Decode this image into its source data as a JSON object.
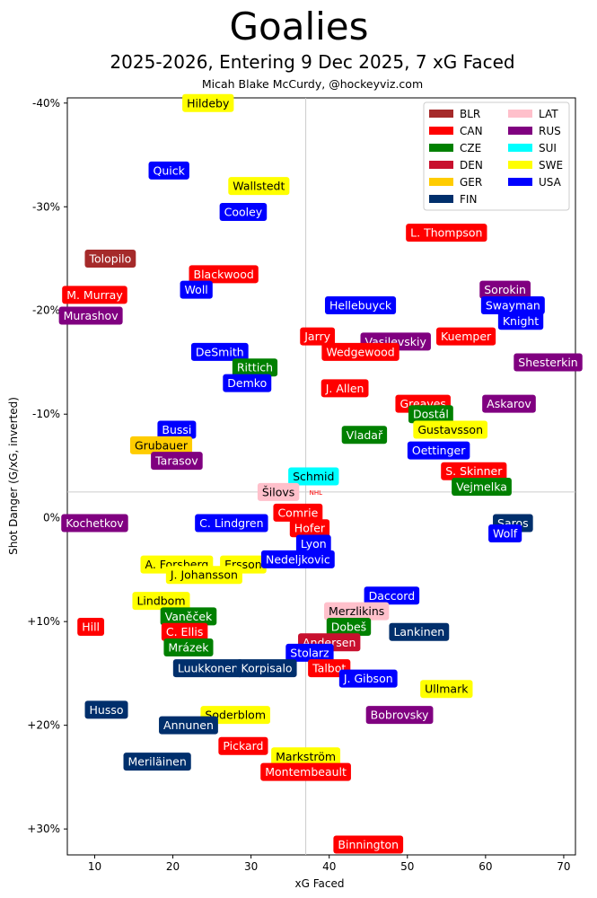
{
  "chart_data": {
    "type": "scatter",
    "title": "Goalies",
    "subtitle": "2025-2026, Entering 9 Dec 2025, 7 xG Faced",
    "credit": "Micah Blake McCurdy, @hockeyviz.com",
    "xlabel": "xG Faced",
    "ylabel": "Shot Danger (G/xG, inverted)",
    "xlim": [
      6.5,
      71.5
    ],
    "ylim": [
      -40.5,
      32.5
    ],
    "xticks": [
      10,
      20,
      30,
      40,
      50,
      60,
      70
    ],
    "xtick_labels": [
      "10",
      "20",
      "30",
      "40",
      "50",
      "60",
      "70"
    ],
    "yticks": [
      -40,
      -30,
      -20,
      -10,
      0,
      10,
      20,
      30
    ],
    "ytick_labels": [
      "-40%",
      "-30%",
      "-20%",
      "-10%",
      "0%",
      "+10%",
      "+20%",
      "+30%"
    ],
    "reference_lines": {
      "x": 37,
      "y": -2.5
    },
    "nhl_marker_label": "NHL",
    "legend": [
      {
        "code": "BLR",
        "color": "#a52a2a"
      },
      {
        "code": "CAN",
        "color": "#ff0000"
      },
      {
        "code": "CZE",
        "color": "#008000"
      },
      {
        "code": "DEN",
        "color": "#c8102e"
      },
      {
        "code": "GER",
        "color": "#ffcc00"
      },
      {
        "code": "FIN",
        "color": "#002f6c"
      },
      {
        "code": "LAT",
        "color": "#ffc0cb"
      },
      {
        "code": "RUS",
        "color": "#800080"
      },
      {
        "code": "SUI",
        "color": "#00ffff"
      },
      {
        "code": "SWE",
        "color": "#ffff00"
      },
      {
        "code": "USA",
        "color": "#0000ff"
      }
    ],
    "colors": {
      "BLR": "#a52a2a",
      "CAN": "#ff0000",
      "CZE": "#008000",
      "DEN": "#c8102e",
      "GER": "#ffcc00",
      "FIN": "#002f6c",
      "LAT": "#ffc0cb",
      "RUS": "#800080",
      "SUI": "#00ffff",
      "SWE": "#ffff00",
      "USA": "#0000ff"
    },
    "points": [
      {
        "name": "Hildeby",
        "country": "SWE",
        "x": 24.5,
        "y": -40.0
      },
      {
        "name": "Quick",
        "country": "USA",
        "x": 19.5,
        "y": -33.5
      },
      {
        "name": "Wallstedt",
        "country": "SWE",
        "x": 31.0,
        "y": -32.0
      },
      {
        "name": "Cooley",
        "country": "USA",
        "x": 29.0,
        "y": -29.5
      },
      {
        "name": "L. Thompson",
        "country": "CAN",
        "x": 55.0,
        "y": -27.5
      },
      {
        "name": "Tolopilo",
        "country": "BLR",
        "x": 12.0,
        "y": -25.0
      },
      {
        "name": "Blackwood",
        "country": "CAN",
        "x": 26.5,
        "y": -23.5
      },
      {
        "name": "M. Murray",
        "country": "CAN",
        "x": 10.0,
        "y": -21.5
      },
      {
        "name": "Woll",
        "country": "USA",
        "x": 23.0,
        "y": -22.0
      },
      {
        "name": "Sorokin",
        "country": "RUS",
        "x": 62.5,
        "y": -22.0
      },
      {
        "name": "Hellebuyck",
        "country": "USA",
        "x": 44.0,
        "y": -20.5
      },
      {
        "name": "Swayman",
        "country": "USA",
        "x": 63.5,
        "y": -20.5
      },
      {
        "name": "Murashov",
        "country": "RUS",
        "x": 9.5,
        "y": -19.5
      },
      {
        "name": "Knight",
        "country": "USA",
        "x": 64.5,
        "y": -19.0
      },
      {
        "name": "Jarry",
        "country": "CAN",
        "x": 38.5,
        "y": -17.5
      },
      {
        "name": "Kuemper",
        "country": "CAN",
        "x": 57.5,
        "y": -17.5
      },
      {
        "name": "Vasilevskiy",
        "country": "RUS",
        "x": 48.5,
        "y": -17.0
      },
      {
        "name": "Wedgewood",
        "country": "CAN",
        "x": 44.0,
        "y": -16.0
      },
      {
        "name": "DeSmith",
        "country": "USA",
        "x": 26.0,
        "y": -16.0
      },
      {
        "name": "Shesterkin",
        "country": "RUS",
        "x": 68.0,
        "y": -15.0
      },
      {
        "name": "Rittich",
        "country": "CZE",
        "x": 30.5,
        "y": -14.5
      },
      {
        "name": "Demko",
        "country": "USA",
        "x": 29.5,
        "y": -13.0
      },
      {
        "name": "J. Allen",
        "country": "CAN",
        "x": 42.0,
        "y": -12.5
      },
      {
        "name": "Greaves",
        "country": "CAN",
        "x": 52.0,
        "y": -11.0
      },
      {
        "name": "Askarov",
        "country": "RUS",
        "x": 63.0,
        "y": -11.0
      },
      {
        "name": "Dostál",
        "country": "CZE",
        "x": 53.0,
        "y": -10.0
      },
      {
        "name": "Bussi",
        "country": "USA",
        "x": 20.5,
        "y": -8.5
      },
      {
        "name": "Gustavsson",
        "country": "SWE",
        "x": 55.5,
        "y": -8.5
      },
      {
        "name": "Vladař",
        "country": "CZE",
        "x": 44.5,
        "y": -8.0
      },
      {
        "name": "Grubauer",
        "country": "GER",
        "x": 18.5,
        "y": -7.0
      },
      {
        "name": "Oettinger",
        "country": "USA",
        "x": 54.0,
        "y": -6.5
      },
      {
        "name": "Tarasov",
        "country": "RUS",
        "x": 20.5,
        "y": -5.5
      },
      {
        "name": "S. Skinner",
        "country": "CAN",
        "x": 58.5,
        "y": -4.5
      },
      {
        "name": "Schmid",
        "country": "SUI",
        "x": 38.0,
        "y": -4.0
      },
      {
        "name": "Vejmelka",
        "country": "CZE",
        "x": 59.5,
        "y": -3.0
      },
      {
        "name": "Šilovs",
        "country": "LAT",
        "x": 33.5,
        "y": -2.5
      },
      {
        "name": "Comrie",
        "country": "CAN",
        "x": 36.0,
        "y": -0.5
      },
      {
        "name": "Saros",
        "country": "FIN",
        "x": 63.5,
        "y": 0.5
      },
      {
        "name": "Kochetkov",
        "country": "RUS",
        "x": 10.0,
        "y": 0.5
      },
      {
        "name": "C. Lindgren",
        "country": "USA",
        "x": 27.5,
        "y": 0.5
      },
      {
        "name": "Hofer",
        "country": "CAN",
        "x": 37.5,
        "y": 1.0
      },
      {
        "name": "Wolf",
        "country": "USA",
        "x": 62.5,
        "y": 1.5
      },
      {
        "name": "Lyon",
        "country": "USA",
        "x": 38.0,
        "y": 2.5
      },
      {
        "name": "A. Forsberg",
        "country": "SWE",
        "x": 20.5,
        "y": 4.5
      },
      {
        "name": "Ersson",
        "country": "SWE",
        "x": 29.0,
        "y": 4.5
      },
      {
        "name": "Nedeljkovic",
        "country": "USA",
        "x": 36.0,
        "y": 4.0
      },
      {
        "name": "J. Johansson",
        "country": "SWE",
        "x": 24.0,
        "y": 5.5
      },
      {
        "name": "Daccord",
        "country": "USA",
        "x": 48.0,
        "y": 7.5
      },
      {
        "name": "Lindbom",
        "country": "SWE",
        "x": 18.5,
        "y": 8.0
      },
      {
        "name": "Merzlikins",
        "country": "LAT",
        "x": 43.5,
        "y": 9.0
      },
      {
        "name": "Vaněček",
        "country": "CZE",
        "x": 22.0,
        "y": 9.5
      },
      {
        "name": "Hill",
        "country": "CAN",
        "x": 9.5,
        "y": 10.5
      },
      {
        "name": "Dobeš",
        "country": "CZE",
        "x": 42.5,
        "y": 10.5
      },
      {
        "name": "Lankinen",
        "country": "FIN",
        "x": 51.5,
        "y": 11.0
      },
      {
        "name": "C. Ellis",
        "country": "CAN",
        "x": 21.5,
        "y": 11.0
      },
      {
        "name": "Andersen",
        "country": "DEN",
        "x": 40.0,
        "y": 12.0
      },
      {
        "name": "Mrázek",
        "country": "CZE",
        "x": 22.0,
        "y": 12.5
      },
      {
        "name": "Stolarz",
        "country": "USA",
        "x": 37.5,
        "y": 13.0
      },
      {
        "name": "Talbot",
        "country": "CAN",
        "x": 40.0,
        "y": 14.5
      },
      {
        "name": "Luukkonen",
        "country": "FIN",
        "x": 24.5,
        "y": 14.5
      },
      {
        "name": "Korpisalo",
        "country": "FIN",
        "x": 32.0,
        "y": 14.5
      },
      {
        "name": "J. Gibson",
        "country": "USA",
        "x": 45.0,
        "y": 15.5
      },
      {
        "name": "Ullmark",
        "country": "SWE",
        "x": 55.0,
        "y": 16.5
      },
      {
        "name": "Husso",
        "country": "FIN",
        "x": 11.5,
        "y": 18.5
      },
      {
        "name": "Soderblom",
        "country": "SWE",
        "x": 28.0,
        "y": 19.0
      },
      {
        "name": "Bobrovsky",
        "country": "RUS",
        "x": 49.0,
        "y": 19.0
      },
      {
        "name": "Annunen",
        "country": "FIN",
        "x": 22.0,
        "y": 20.0
      },
      {
        "name": "Pickard",
        "country": "CAN",
        "x": 29.0,
        "y": 22.0
      },
      {
        "name": "Markström",
        "country": "SWE",
        "x": 37.0,
        "y": 23.0
      },
      {
        "name": "Meriläinen",
        "country": "FIN",
        "x": 18.0,
        "y": 23.5
      },
      {
        "name": "Montembeault",
        "country": "CAN",
        "x": 37.0,
        "y": 24.5
      },
      {
        "name": "Binnington",
        "country": "CAN",
        "x": 45.0,
        "y": 31.5
      }
    ]
  }
}
